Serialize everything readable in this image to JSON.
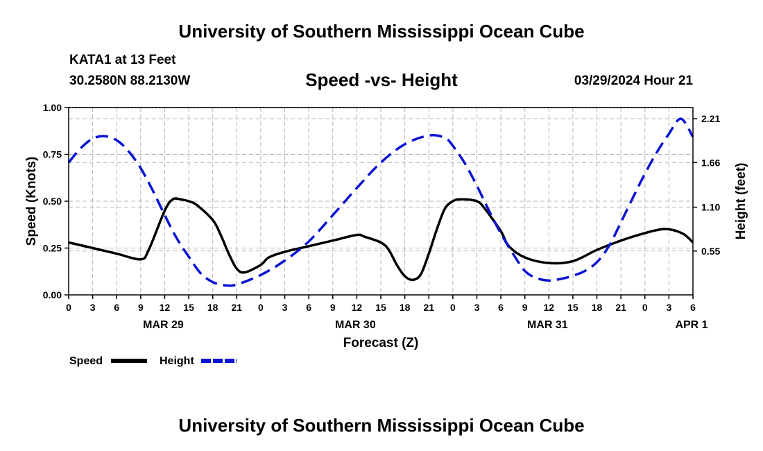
{
  "header": {
    "title": "University of Southern Mississippi Ocean Cube",
    "station": "KATA1 at 13 Feet",
    "coordinates": "30.2580N  88.2130W",
    "datetime": "03/29/2024 Hour 21"
  },
  "footer": {
    "title": "University of Southern Mississippi Ocean Cube"
  },
  "colors": {
    "speed": "#000000",
    "height": "#0a14d2",
    "grid": "#b4b4b4"
  },
  "chart_data": {
    "type": "line",
    "title": "Speed -vs- Height",
    "xlabel": "Forecast (Z)",
    "ylabel": "Speed (Knots)",
    "y2label": "Height (feet)",
    "xlim": [
      0,
      78
    ],
    "ylim": [
      0,
      1
    ],
    "y2lim": [
      0,
      2.35
    ],
    "x_tick_values": [
      0,
      3,
      6,
      9,
      12,
      15,
      18,
      21,
      24,
      27,
      30,
      33,
      36,
      39,
      42,
      45,
      48,
      51,
      54,
      57,
      60,
      63,
      66,
      69,
      72,
      75,
      78
    ],
    "x_tick_labels": [
      "0",
      "3",
      "6",
      "9",
      "12",
      "15",
      "18",
      "21",
      "0",
      "3",
      "6",
      "9",
      "12",
      "15",
      "18",
      "21",
      "0",
      "3",
      "6",
      "9",
      "12",
      "15",
      "18",
      "21",
      "0",
      "3",
      "6"
    ],
    "date_labels": [
      {
        "label": "MAR 29",
        "x": 12
      },
      {
        "label": "MAR 30",
        "x": 36
      },
      {
        "label": "MAR 31",
        "x": 60
      },
      {
        "label": "APR 1",
        "x": 78
      }
    ],
    "y_ticks": [
      {
        "value": 0.0,
        "label": "0.00"
      },
      {
        "value": 0.25,
        "label": "0.25"
      },
      {
        "value": 0.5,
        "label": "0.50"
      },
      {
        "value": 0.75,
        "label": "0.75"
      },
      {
        "value": 1.0,
        "label": "1.00"
      }
    ],
    "y2_ticks": [
      {
        "value": 0.55,
        "label": "0.55"
      },
      {
        "value": 1.1,
        "label": "1.10"
      },
      {
        "value": 1.66,
        "label": "1.66"
      },
      {
        "value": 2.21,
        "label": "2.21"
      }
    ],
    "legend_position": "bottom-left",
    "series": [
      {
        "name": "Speed",
        "axis": "left",
        "style": "solid",
        "x": [
          0,
          3,
          6,
          9,
          10,
          12,
          13,
          14,
          15,
          16,
          18,
          19,
          20,
          21,
          22,
          24,
          25,
          27,
          30,
          33,
          36,
          37,
          39,
          40,
          41,
          42,
          43,
          44,
          45,
          46,
          47,
          48,
          49,
          51,
          52,
          54,
          55,
          57,
          60,
          63,
          66,
          69,
          72,
          74,
          75,
          76,
          77,
          78
        ],
        "values": [
          0.28,
          0.25,
          0.22,
          0.19,
          0.24,
          0.45,
          0.51,
          0.51,
          0.5,
          0.48,
          0.4,
          0.32,
          0.22,
          0.14,
          0.12,
          0.16,
          0.2,
          0.23,
          0.26,
          0.29,
          0.32,
          0.31,
          0.28,
          0.24,
          0.16,
          0.1,
          0.08,
          0.11,
          0.22,
          0.35,
          0.46,
          0.5,
          0.51,
          0.5,
          0.46,
          0.34,
          0.26,
          0.2,
          0.17,
          0.18,
          0.24,
          0.29,
          0.33,
          0.35,
          0.35,
          0.34,
          0.32,
          0.28
        ]
      },
      {
        "name": "Height",
        "axis": "right",
        "style": "dashed",
        "x": [
          0,
          1.5,
          3,
          4.5,
          6,
          7.5,
          9,
          10.5,
          12,
          13.5,
          15,
          16.5,
          18,
          19.5,
          21,
          24,
          27,
          30,
          33,
          36,
          39,
          42,
          45,
          47,
          48,
          49.5,
          51,
          52.5,
          54,
          55.5,
          57,
          58.5,
          60,
          61.5,
          63,
          64.5,
          66,
          67.5,
          69,
          70.5,
          72,
          73.5,
          75,
          76.5,
          78
        ],
        "values": [
          1.66,
          1.84,
          1.96,
          1.99,
          1.94,
          1.8,
          1.59,
          1.31,
          1.0,
          0.71,
          0.48,
          0.27,
          0.16,
          0.12,
          0.13,
          0.25,
          0.43,
          0.67,
          1.0,
          1.34,
          1.66,
          1.89,
          2.0,
          1.97,
          1.87,
          1.65,
          1.37,
          1.06,
          0.77,
          0.52,
          0.3,
          0.21,
          0.18,
          0.2,
          0.24,
          0.3,
          0.41,
          0.61,
          0.91,
          1.22,
          1.52,
          1.79,
          2.02,
          2.21,
          1.98
        ]
      }
    ]
  }
}
